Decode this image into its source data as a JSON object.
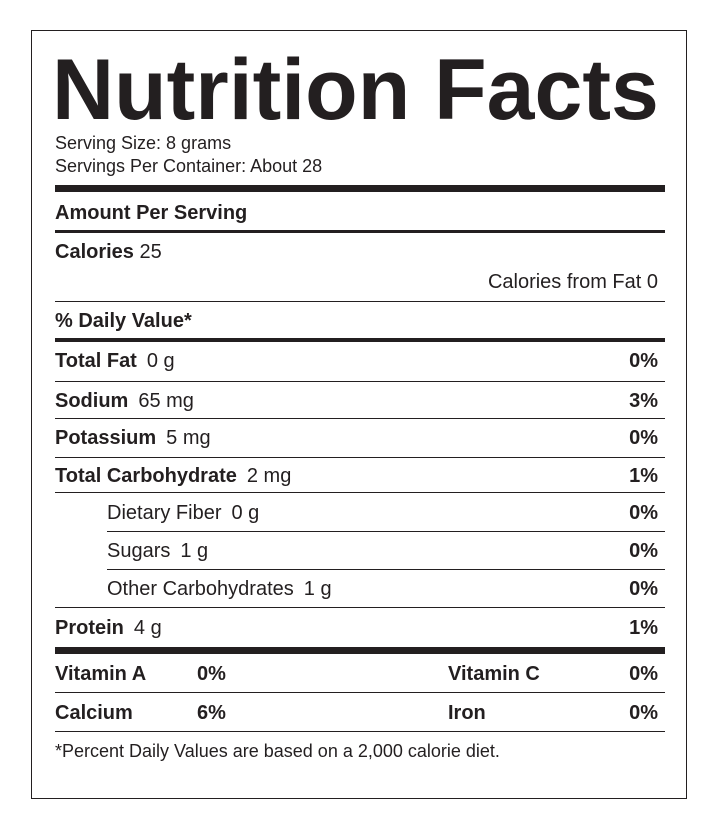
{
  "title": "Nutrition Facts",
  "serving": [
    "Serving Size: 8 grams",
    "Servings Per Container: About 28"
  ],
  "amount_header": "Amount Per Serving",
  "calories": {
    "label": "Calories",
    "value": "25"
  },
  "calories_from_fat": "Calories from Fat 0",
  "daily_value_header": "% Daily Value*",
  "nutrients": [
    {
      "name": "Total Fat",
      "amount": "0 g",
      "dv": "0%",
      "indent": false
    },
    {
      "name": "Sodium",
      "amount": "65 mg",
      "dv": "3%",
      "indent": false
    },
    {
      "name": "Potassium",
      "amount": "5 mg",
      "dv": "0%",
      "indent": false
    },
    {
      "name": "Total Carbohydrate",
      "amount": "2 mg",
      "dv": "1%",
      "indent": false
    },
    {
      "name": "Dietary Fiber",
      "amount": "0 g",
      "dv": "0%",
      "indent": true
    },
    {
      "name": "Sugars",
      "amount": "1 g",
      "dv": "0%",
      "indent": true
    },
    {
      "name": "Other Carbohydrates",
      "amount": "1 g",
      "dv": "0%",
      "indent": true
    },
    {
      "name": "Protein",
      "amount": "4 g",
      "dv": "1%",
      "indent": false
    }
  ],
  "vitamins": [
    [
      "Vitamin A",
      "0%",
      "Vitamin C",
      "0%"
    ],
    [
      "Calcium",
      "6%",
      "Iron",
      "0%"
    ]
  ],
  "footnote": "*Percent Daily Values are based on a 2,000 calorie diet."
}
